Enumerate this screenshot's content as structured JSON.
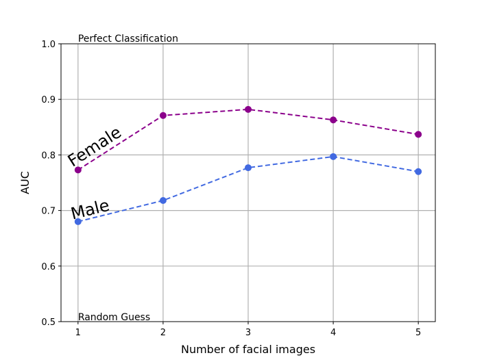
{
  "chart_data": {
    "type": "line",
    "title": "",
    "xlabel": "Number of facial images",
    "ylabel": "AUC",
    "x": [
      1,
      2,
      3,
      4,
      5
    ],
    "xticks": [
      "1",
      "2",
      "3",
      "4",
      "5"
    ],
    "yticks": [
      "0.5",
      "0.6",
      "0.7",
      "0.8",
      "0.9",
      "1.0"
    ],
    "ylim": [
      0.5,
      1.0
    ],
    "grid": true,
    "series": [
      {
        "name": "Female",
        "values": [
          0.773,
          0.871,
          0.882,
          0.863,
          0.837
        ],
        "color": "#8B008B",
        "style": "dashed"
      },
      {
        "name": "Male",
        "values": [
          0.68,
          0.718,
          0.777,
          0.797,
          0.77
        ],
        "color": "#4169E1",
        "style": "dashed"
      }
    ],
    "annotations": {
      "top": "Perfect Classification",
      "bottom": "Random Guess"
    }
  }
}
